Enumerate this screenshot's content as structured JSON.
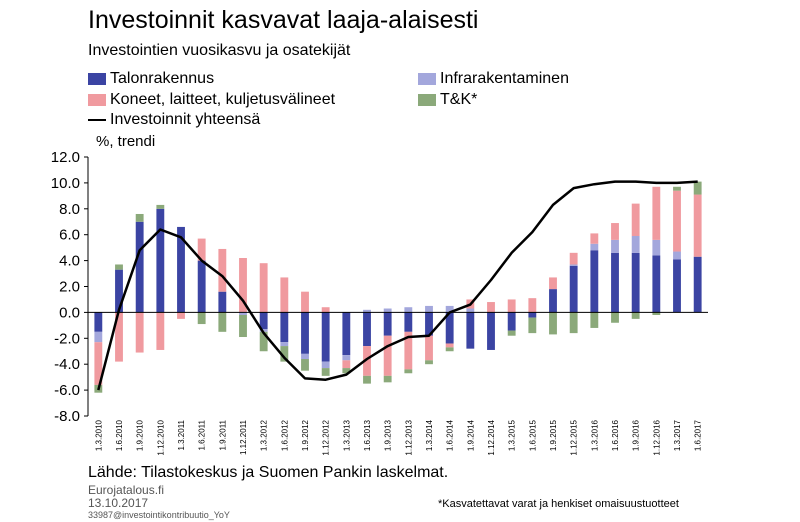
{
  "title": "Investoinnit kasvavat laaja-alaisesti",
  "subtitle": "Investointien vuosikasvu ja osatekijät",
  "legend": {
    "talo": "Talonrakennus",
    "infra": "Infrarakentaminen",
    "koneet": "Koneet, laitteet, kuljetusvälineet",
    "tk": "T&K*",
    "total": "Investoinnit yhteensä"
  },
  "colors": {
    "talo": "#3b44a3",
    "infra": "#a3a7dc",
    "koneet": "#f09a9f",
    "tk": "#8ba97a",
    "total": "#000000"
  },
  "unit_label": "%, trendi",
  "source": "Lähde: Tilastokeskus ja Suomen Pankin laskelmat.",
  "site": "Eurojatalous.fi",
  "date": "13.10.2017",
  "code": "33987@investointikontribuutio_YoY",
  "footnote": "*Kasvatettavat varat ja henkiset omaisuustuotteet",
  "chart_data": {
    "type": "bar",
    "stacked": true,
    "ylim": [
      -8,
      12
    ],
    "yticks": [
      "12.0",
      "10.0",
      "8.0",
      "6.0",
      "4.0",
      "2.0",
      "0.0",
      "-2.0",
      "-4.0",
      "-6.0",
      "-8.0"
    ],
    "categories": [
      "1.3.2010",
      "1.6.2010",
      "1.9.2010",
      "1.12.2010",
      "1.3.2011",
      "1.6.2011",
      "1.9.2011",
      "1.12.2011",
      "1.3.2012",
      "1.6.2012",
      "1.9.2012",
      "1.12.2012",
      "1.3.2013",
      "1.6.2013",
      "1.9.2013",
      "1.12.2013",
      "1.3.2014",
      "1.6.2014",
      "1.9.2014",
      "1.12.2014",
      "1.3.2015",
      "1.6.2015",
      "1.9.2015",
      "1.12.2015",
      "1.3.2016",
      "1.6.2016",
      "1.9.2016",
      "1.12.2016",
      "1.3.2017",
      "1.6.2017"
    ],
    "series": [
      {
        "key": "talo",
        "name": "Talonrakennus",
        "values": [
          -1.5,
          3.3,
          7.0,
          8.0,
          6.6,
          4.0,
          1.6,
          0.0,
          -1.3,
          -2.3,
          -3.2,
          -3.8,
          -3.3,
          -2.6,
          -1.8,
          -1.5,
          -1.8,
          -2.4,
          -2.8,
          -2.9,
          -1.4,
          -0.4,
          1.8,
          3.6,
          4.8,
          4.6,
          4.6,
          4.4,
          4.1,
          4.3
        ]
      },
      {
        "key": "infra",
        "name": "Infrarakentaminen",
        "values": [
          -0.8,
          0.0,
          0.0,
          0.0,
          0.0,
          0.0,
          0.0,
          -0.2,
          -0.2,
          -0.3,
          -0.4,
          -0.5,
          -0.4,
          0.2,
          0.3,
          0.4,
          0.5,
          0.5,
          0.3,
          0.0,
          0.0,
          0.0,
          0.0,
          0.1,
          0.5,
          1.0,
          1.3,
          1.2,
          0.6,
          0.0
        ]
      },
      {
        "key": "koneet",
        "name": "Koneet, laitteet, kuljetusvälineet",
        "values": [
          -3.3,
          -3.8,
          -3.1,
          -2.9,
          -0.5,
          1.7,
          3.3,
          4.2,
          3.8,
          2.7,
          1.6,
          0.4,
          -0.6,
          -2.3,
          -3.1,
          -2.9,
          -1.9,
          -0.3,
          0.7,
          0.8,
          1.0,
          1.1,
          0.9,
          0.9,
          0.8,
          1.3,
          2.5,
          4.1,
          4.7,
          4.8
        ]
      },
      {
        "key": "tk",
        "name": "T&K*",
        "values": [
          -0.6,
          0.4,
          0.6,
          0.3,
          0.0,
          -0.9,
          -1.5,
          -1.7,
          -1.5,
          -1.2,
          -0.9,
          -0.6,
          -0.4,
          -0.6,
          -0.5,
          -0.3,
          -0.3,
          -0.3,
          0.0,
          0.0,
          -0.4,
          -1.2,
          -1.7,
          -1.6,
          -1.2,
          -0.8,
          -0.5,
          -0.2,
          0.3,
          1.0
        ]
      }
    ],
    "total": {
      "name": "Investoinnit yhteensä",
      "values": [
        -6.0,
        0.2,
        4.8,
        6.4,
        5.8,
        4.0,
        2.8,
        0.9,
        -1.6,
        -3.5,
        -5.1,
        -5.2,
        -4.8,
        -3.6,
        -2.6,
        -1.9,
        -1.8,
        0.0,
        0.6,
        2.5,
        4.6,
        6.2,
        8.3,
        9.6,
        9.9,
        10.1,
        10.1,
        10.0,
        10.0,
        10.1
      ]
    }
  }
}
